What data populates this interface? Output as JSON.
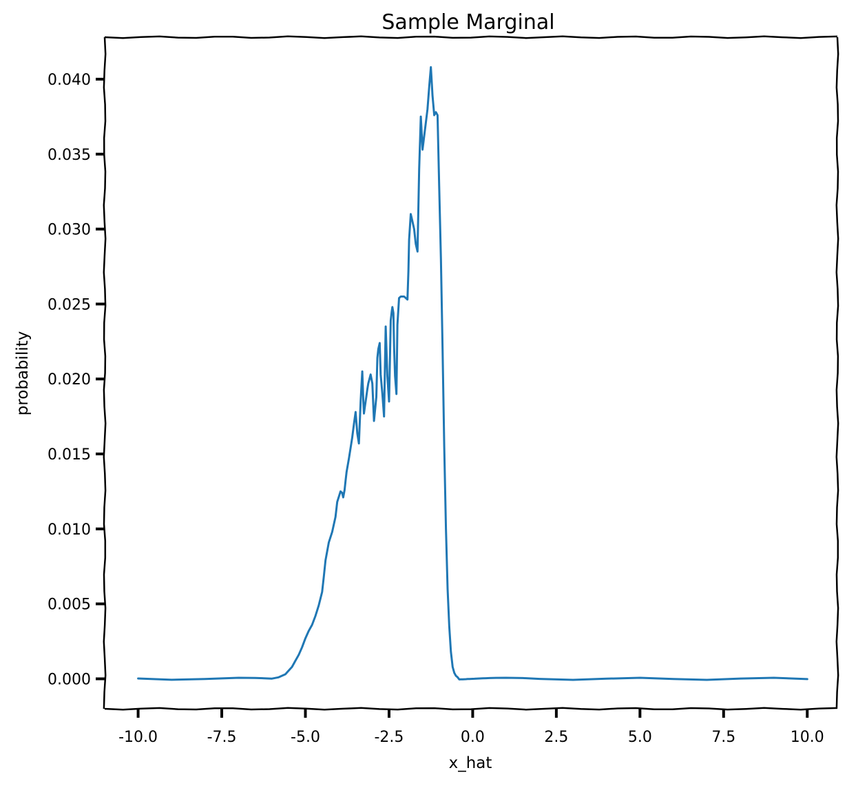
{
  "chart_data": {
    "type": "line",
    "title": "Sample Marginal",
    "xlabel": "x_hat",
    "ylabel": "probability",
    "xlim": [
      -11.0,
      10.9
    ],
    "ylim": [
      -0.002,
      0.0428
    ],
    "x_ticks": [
      -10.0,
      -7.5,
      -5.0,
      -2.5,
      0.0,
      2.5,
      5.0,
      7.5,
      10.0
    ],
    "x_tick_labels": [
      "-10.0",
      "-7.5",
      "-5.0",
      "-2.5",
      "0.0",
      "2.5",
      "5.0",
      "7.5",
      "10.0"
    ],
    "y_ticks": [
      0.0,
      0.005,
      0.01,
      0.015,
      0.02,
      0.025,
      0.03,
      0.035,
      0.04
    ],
    "y_tick_labels": [
      "0.000",
      "0.005",
      "0.010",
      "0.015",
      "0.020",
      "0.025",
      "0.030",
      "0.035",
      "0.040"
    ],
    "grid": false,
    "line_color": "#1f77b4",
    "series": [
      {
        "x": [
          -10.0,
          -9.0,
          -8.0,
          -7.0,
          -6.5,
          -6.0,
          -5.8,
          -5.6,
          -5.4,
          -5.3,
          -5.2,
          -5.1,
          -5.0,
          -4.9,
          -4.8,
          -4.7,
          -4.6,
          -4.5,
          -4.45,
          -4.4,
          -4.3,
          -4.2,
          -4.1,
          -4.05,
          -3.95,
          -3.9,
          -3.87,
          -3.83,
          -3.8,
          -3.77,
          -3.7,
          -3.6,
          -3.55,
          -3.5,
          -3.45,
          -3.4,
          -3.35,
          -3.3,
          -3.27,
          -3.25,
          -3.22,
          -3.18,
          -3.15,
          -3.12,
          -3.05,
          -3.0,
          -2.95,
          -2.88,
          -2.85,
          -2.82,
          -2.78,
          -2.75,
          -2.7,
          -2.65,
          -2.6,
          -2.55,
          -2.5,
          -2.45,
          -2.42,
          -2.4,
          -2.37,
          -2.35,
          -2.32,
          -2.28,
          -2.25,
          -2.2,
          -2.15,
          -2.1,
          -2.05,
          -2.0,
          -1.95,
          -1.92,
          -1.9,
          -1.85,
          -1.8,
          -1.75,
          -1.7,
          -1.65,
          -1.6,
          -1.55,
          -1.5,
          -1.45,
          -1.4,
          -1.35,
          -1.3,
          -1.25,
          -1.2,
          -1.15,
          -1.1,
          -1.05,
          -1.0,
          -0.95,
          -0.9,
          -0.85,
          -0.8,
          -0.75,
          -0.7,
          -0.65,
          -0.6,
          -0.55,
          -0.5,
          -0.45,
          -0.4,
          -0.35,
          -0.3,
          -0.25,
          -0.2,
          -0.15,
          -0.1,
          -0.05,
          0.0,
          0.05,
          0.1,
          0.15,
          0.2,
          0.25,
          0.3,
          0.4,
          0.5,
          0.7,
          1.0,
          1.5,
          2.0,
          3.0,
          4.0,
          5.0,
          6.0,
          7.0,
          8.0,
          9.0,
          10.0
        ],
        "y": [
          0.0,
          0.0,
          0.0,
          0.0,
          0.0,
          0.0,
          0.0001,
          0.0003,
          0.0008,
          0.0012,
          0.0016,
          0.0021,
          0.0027,
          0.0032,
          0.0036,
          0.0042,
          0.0049,
          0.0058,
          0.0068,
          0.0079,
          0.0091,
          0.0098,
          0.0108,
          0.0118,
          0.0125,
          0.0124,
          0.0121,
          0.0126,
          0.0132,
          0.0138,
          0.0147,
          0.0161,
          0.017,
          0.0178,
          0.0164,
          0.0157,
          0.0185,
          0.0205,
          0.0185,
          0.0177,
          0.0182,
          0.0188,
          0.0193,
          0.0197,
          0.0203,
          0.0197,
          0.0172,
          0.0188,
          0.0214,
          0.022,
          0.0224,
          0.0203,
          0.019,
          0.0175,
          0.0235,
          0.0202,
          0.0185,
          0.0239,
          0.0245,
          0.0248,
          0.0244,
          0.0221,
          0.0202,
          0.019,
          0.0236,
          0.0254,
          0.0255,
          0.0255,
          0.0255,
          0.0254,
          0.0253,
          0.0272,
          0.0293,
          0.031,
          0.0305,
          0.03,
          0.029,
          0.0285,
          0.034,
          0.0375,
          0.0353,
          0.0362,
          0.0371,
          0.038,
          0.0395,
          0.0408,
          0.0389,
          0.0376,
          0.0378,
          0.0376,
          0.0328,
          0.028,
          0.022,
          0.0155,
          0.01,
          0.006,
          0.0035,
          0.0018,
          0.0008,
          0.0004,
          0.0002,
          0.0001,
          0.0,
          0.0,
          0.0,
          0.0,
          0.0,
          0.0,
          0.0,
          0.0,
          0.0,
          0.0,
          0.0,
          0.0,
          0.0,
          0.0,
          0.0,
          0.0,
          0.0,
          0.0,
          0.0,
          0.0,
          0.0,
          0.0,
          0.0,
          0.0,
          0.0,
          0.0,
          0.0,
          0.0,
          0.0
        ]
      }
    ]
  }
}
